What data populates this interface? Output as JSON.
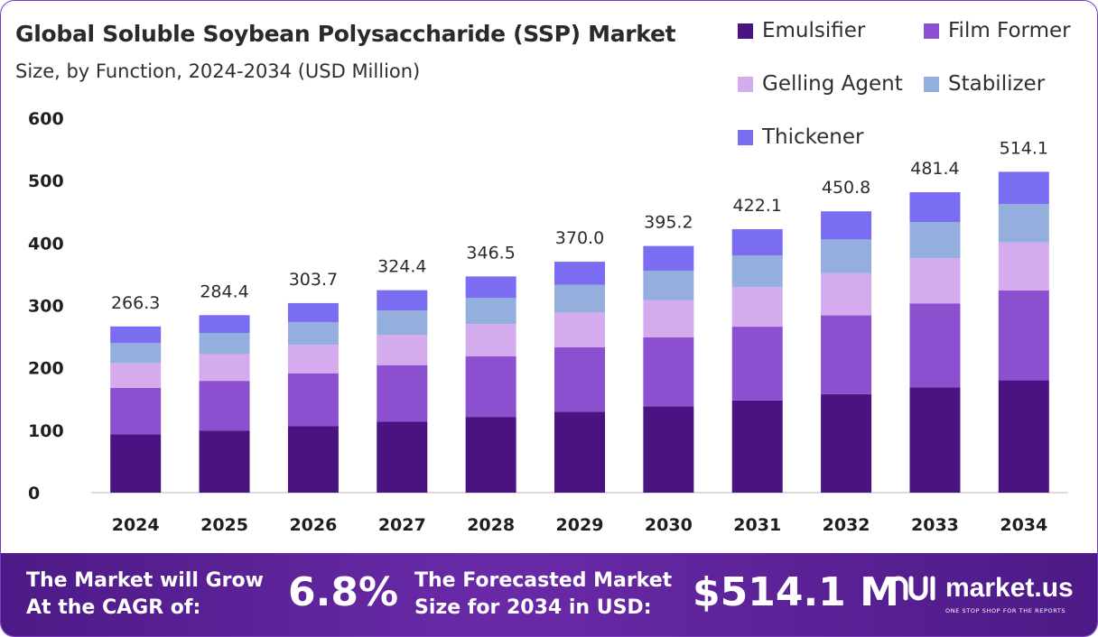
{
  "chart_data": {
    "type": "bar",
    "stacked": true,
    "title": "Global Soluble Soybean Polysaccharide (SSP) Market",
    "subtitle": "Size, by Function, 2024-2034 (USD Million)",
    "xlabel": "",
    "ylabel": "",
    "ylim": [
      0,
      600
    ],
    "yticks": [
      0,
      100,
      200,
      300,
      400,
      500,
      600
    ],
    "grid": false,
    "legend_position": "top-right",
    "categories": [
      "2024",
      "2025",
      "2026",
      "2027",
      "2028",
      "2029",
      "2030",
      "2031",
      "2032",
      "2033",
      "2034"
    ],
    "series": [
      {
        "name": "Emulsifier",
        "color": "#4b1382",
        "values": [
          93.2,
          99.5,
          106.3,
          113.5,
          121.3,
          129.5,
          138.3,
          147.7,
          157.8,
          168.5,
          179.9
        ]
      },
      {
        "name": "Film Former",
        "color": "#8c4fcf",
        "values": [
          74.6,
          79.6,
          85.0,
          90.8,
          97.0,
          103.6,
          110.7,
          118.2,
          126.2,
          134.8,
          143.9
        ]
      },
      {
        "name": "Gelling Agent",
        "color": "#d4acee",
        "values": [
          39.9,
          42.7,
          45.6,
          48.7,
          52.0,
          55.5,
          59.3,
          63.3,
          67.6,
          72.2,
          77.1
        ]
      },
      {
        "name": "Stabilizer",
        "color": "#94aedd",
        "values": [
          31.9,
          34.1,
          36.4,
          38.9,
          41.6,
          44.4,
          47.4,
          50.7,
          54.1,
          57.8,
          61.7
        ]
      },
      {
        "name": "Thickener",
        "color": "#7a6df2",
        "values": [
          26.7,
          28.5,
          30.4,
          32.5,
          34.6,
          37.0,
          39.5,
          42.2,
          45.1,
          48.1,
          51.5
        ]
      }
    ],
    "totals": [
      266.3,
      284.4,
      303.7,
      324.4,
      346.5,
      370.0,
      395.2,
      422.1,
      450.8,
      481.4,
      514.1
    ],
    "total_labels": [
      "266.3",
      "284.4",
      "303.7",
      "324.4",
      "346.5",
      "370.0",
      "395.2",
      "422.1",
      "450.8",
      "481.4",
      "514.1"
    ]
  },
  "footer": {
    "cagr_label_line1": "The Market will Grow",
    "cagr_label_line2": "At the CAGR of:",
    "cagr_value": "6.8%",
    "forecast_label_line1": "The Forecasted Market",
    "forecast_label_line2": "Size for 2034 in USD:",
    "forecast_value": "$514.1 M",
    "brand_name": "market.us",
    "brand_tagline": "ONE STOP SHOP FOR THE REPORTS",
    "brand_icon": "market-us-logo-icon",
    "background_color": "#5a2196"
  }
}
